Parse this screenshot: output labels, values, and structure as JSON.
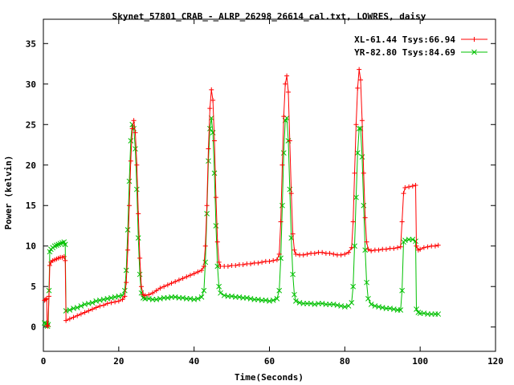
{
  "chart_data": {
    "type": "line",
    "title": "Skynet_57801_CRAB_-_ALRP_26298_26614_cal.txt, LOWRES, daisy",
    "xlabel": "Time(Seconds)",
    "ylabel": "Power (kelvin)",
    "xlim": [
      0,
      120
    ],
    "ylim": [
      -3,
      38
    ],
    "xticks": [
      0,
      20,
      40,
      60,
      80,
      100,
      120
    ],
    "yticks": [
      0,
      5,
      10,
      15,
      20,
      25,
      30,
      35
    ],
    "xtick_labels": [
      "0",
      "20",
      "40",
      "60",
      "80",
      "100",
      "120"
    ],
    "ytick_labels": [
      "0",
      "5",
      "10",
      "15",
      "20",
      "25",
      "30",
      "35"
    ],
    "grid": false,
    "legend_position": "top-right",
    "series": [
      {
        "name": "XL-61.44 Tsys:66.94",
        "color": "#ff0000",
        "marker": "plus",
        "points": [
          [
            0.3,
            3.3
          ],
          [
            0.6,
            3.4
          ],
          [
            0.9,
            3.5
          ],
          [
            1.0,
            0.2
          ],
          [
            1.2,
            0.1
          ],
          [
            1.5,
            3.8
          ],
          [
            1.7,
            7.6
          ],
          [
            2.0,
            8.0
          ],
          [
            2.5,
            8.2
          ],
          [
            3.0,
            8.3
          ],
          [
            3.5,
            8.4
          ],
          [
            4.0,
            8.5
          ],
          [
            4.5,
            8.6
          ],
          [
            5.0,
            8.6
          ],
          [
            5.5,
            8.7
          ],
          [
            5.8,
            8.2
          ],
          [
            6.0,
            0.8
          ],
          [
            7,
            1.0
          ],
          [
            8,
            1.2
          ],
          [
            9,
            1.4
          ],
          [
            10,
            1.6
          ],
          [
            11,
            1.8
          ],
          [
            12,
            2.0
          ],
          [
            13,
            2.2
          ],
          [
            14,
            2.4
          ],
          [
            15,
            2.6
          ],
          [
            16,
            2.7
          ],
          [
            17,
            2.9
          ],
          [
            18,
            3.0
          ],
          [
            19,
            3.1
          ],
          [
            20,
            3.2
          ],
          [
            21,
            3.4
          ],
          [
            21.6,
            3.8
          ],
          [
            22.0,
            5.5
          ],
          [
            22.4,
            9.5
          ],
          [
            22.8,
            15
          ],
          [
            23.2,
            20.5
          ],
          [
            23.6,
            24.5
          ],
          [
            24.0,
            25.5
          ],
          [
            24.4,
            24.0
          ],
          [
            24.8,
            20.0
          ],
          [
            25.2,
            14.0
          ],
          [
            25.6,
            8.5
          ],
          [
            26.0,
            5.0
          ],
          [
            26.5,
            4.0
          ],
          [
            27,
            3.9
          ],
          [
            28,
            4.0
          ],
          [
            29,
            4.2
          ],
          [
            30,
            4.5
          ],
          [
            31,
            4.8
          ],
          [
            32,
            5.0
          ],
          [
            33,
            5.2
          ],
          [
            34,
            5.4
          ],
          [
            35,
            5.6
          ],
          [
            36,
            5.8
          ],
          [
            37,
            6.0
          ],
          [
            38,
            6.2
          ],
          [
            39,
            6.4
          ],
          [
            40,
            6.6
          ],
          [
            41,
            6.8
          ],
          [
            42,
            7.0
          ],
          [
            42.6,
            7.5
          ],
          [
            43.0,
            10
          ],
          [
            43.4,
            15
          ],
          [
            43.8,
            22
          ],
          [
            44.2,
            27
          ],
          [
            44.6,
            29.3
          ],
          [
            45.0,
            28.0
          ],
          [
            45.4,
            23.0
          ],
          [
            45.8,
            16.0
          ],
          [
            46.2,
            10.5
          ],
          [
            46.6,
            8.0
          ],
          [
            47,
            7.5
          ],
          [
            48,
            7.5
          ],
          [
            49,
            7.5
          ],
          [
            50,
            7.6
          ],
          [
            51,
            7.6
          ],
          [
            52,
            7.7
          ],
          [
            53,
            7.7
          ],
          [
            54,
            7.8
          ],
          [
            55,
            7.8
          ],
          [
            56,
            7.9
          ],
          [
            57,
            7.9
          ],
          [
            58,
            8.0
          ],
          [
            59,
            8.1
          ],
          [
            60,
            8.1
          ],
          [
            61,
            8.2
          ],
          [
            62,
            8.3
          ],
          [
            62.6,
            9.0
          ],
          [
            63.0,
            13
          ],
          [
            63.4,
            20
          ],
          [
            63.8,
            26
          ],
          [
            64.2,
            30.0
          ],
          [
            64.6,
            31.0
          ],
          [
            65.0,
            29.0
          ],
          [
            65.4,
            23.0
          ],
          [
            65.8,
            16.5
          ],
          [
            66.2,
            11.5
          ],
          [
            66.6,
            9.5
          ],
          [
            67,
            9.0
          ],
          [
            68,
            8.9
          ],
          [
            69,
            8.9
          ],
          [
            70,
            9.0
          ],
          [
            71,
            9.1
          ],
          [
            72,
            9.1
          ],
          [
            73,
            9.2
          ],
          [
            74,
            9.2
          ],
          [
            75,
            9.1
          ],
          [
            76,
            9.1
          ],
          [
            77,
            9.0
          ],
          [
            78,
            8.9
          ],
          [
            79,
            8.9
          ],
          [
            80,
            9.0
          ],
          [
            81,
            9.2
          ],
          [
            81.8,
            9.8
          ],
          [
            82.2,
            13
          ],
          [
            82.6,
            19
          ],
          [
            83.0,
            25
          ],
          [
            83.4,
            29.5
          ],
          [
            83.8,
            31.8
          ],
          [
            84.2,
            30.5
          ],
          [
            84.6,
            25.5
          ],
          [
            85.0,
            19.0
          ],
          [
            85.4,
            13.5
          ],
          [
            85.8,
            10.5
          ],
          [
            86.2,
            9.6
          ],
          [
            87,
            9.4
          ],
          [
            88,
            9.5
          ],
          [
            89,
            9.5
          ],
          [
            90,
            9.6
          ],
          [
            91,
            9.6
          ],
          [
            92,
            9.7
          ],
          [
            93,
            9.7
          ],
          [
            94,
            9.8
          ],
          [
            94.8,
            9.9
          ],
          [
            95.2,
            13
          ],
          [
            95.6,
            16.5
          ],
          [
            96,
            17.2
          ],
          [
            97,
            17.3
          ],
          [
            98,
            17.4
          ],
          [
            98.8,
            17.5
          ],
          [
            99.0,
            10.0
          ],
          [
            99.5,
            9.5
          ],
          [
            100,
            9.6
          ],
          [
            101,
            9.8
          ],
          [
            102,
            9.9
          ],
          [
            103,
            10.0
          ],
          [
            104,
            10.0
          ],
          [
            104.8,
            10.1
          ]
        ]
      },
      {
        "name": "YR-82.80 Tsys:84.69",
        "color": "#00c000",
        "marker": "cross",
        "points": [
          [
            0.3,
            0.5
          ],
          [
            0.6,
            0.4
          ],
          [
            0.9,
            0.4
          ],
          [
            1.1,
            0.1
          ],
          [
            1.3,
            0.3
          ],
          [
            1.5,
            4.5
          ],
          [
            1.7,
            9.3
          ],
          [
            2.0,
            9.6
          ],
          [
            2.5,
            9.8
          ],
          [
            3.0,
            10.0
          ],
          [
            3.5,
            10.1
          ],
          [
            4.0,
            10.2
          ],
          [
            4.5,
            10.3
          ],
          [
            5.0,
            10.4
          ],
          [
            5.5,
            10.5
          ],
          [
            5.8,
            10.2
          ],
          [
            6.0,
            2.0
          ],
          [
            7,
            2.1
          ],
          [
            8,
            2.3
          ],
          [
            9,
            2.4
          ],
          [
            10,
            2.6
          ],
          [
            11,
            2.8
          ],
          [
            12,
            2.9
          ],
          [
            13,
            3.0
          ],
          [
            14,
            3.2
          ],
          [
            15,
            3.3
          ],
          [
            16,
            3.4
          ],
          [
            17,
            3.5
          ],
          [
            18,
            3.6
          ],
          [
            19,
            3.7
          ],
          [
            20,
            3.8
          ],
          [
            21,
            3.9
          ],
          [
            21.6,
            4.5
          ],
          [
            22.0,
            7.0
          ],
          [
            22.4,
            12
          ],
          [
            22.8,
            18
          ],
          [
            23.2,
            23
          ],
          [
            23.6,
            25.0
          ],
          [
            24.0,
            24.5
          ],
          [
            24.4,
            22.0
          ],
          [
            24.8,
            17.0
          ],
          [
            25.2,
            11.0
          ],
          [
            25.6,
            6.5
          ],
          [
            26.0,
            4.2
          ],
          [
            26.5,
            3.6
          ],
          [
            27,
            3.5
          ],
          [
            28,
            3.5
          ],
          [
            29,
            3.4
          ],
          [
            30,
            3.4
          ],
          [
            31,
            3.5
          ],
          [
            32,
            3.6
          ],
          [
            33,
            3.6
          ],
          [
            34,
            3.7
          ],
          [
            35,
            3.7
          ],
          [
            36,
            3.6
          ],
          [
            37,
            3.6
          ],
          [
            38,
            3.5
          ],
          [
            39,
            3.5
          ],
          [
            40,
            3.4
          ],
          [
            41,
            3.5
          ],
          [
            42,
            3.7
          ],
          [
            42.6,
            4.5
          ],
          [
            43.0,
            8
          ],
          [
            43.4,
            14
          ],
          [
            43.8,
            20.5
          ],
          [
            44.2,
            24.5
          ],
          [
            44.6,
            25.8
          ],
          [
            45.0,
            24.0
          ],
          [
            45.4,
            19.0
          ],
          [
            45.8,
            12.5
          ],
          [
            46.2,
            7.5
          ],
          [
            46.6,
            5.0
          ],
          [
            47,
            4.2
          ],
          [
            48,
            3.9
          ],
          [
            49,
            3.8
          ],
          [
            50,
            3.8
          ],
          [
            51,
            3.7
          ],
          [
            52,
            3.7
          ],
          [
            53,
            3.6
          ],
          [
            54,
            3.6
          ],
          [
            55,
            3.5
          ],
          [
            56,
            3.4
          ],
          [
            57,
            3.4
          ],
          [
            58,
            3.3
          ],
          [
            59,
            3.3
          ],
          [
            60,
            3.2
          ],
          [
            61,
            3.3
          ],
          [
            62,
            3.5
          ],
          [
            62.6,
            4.5
          ],
          [
            63.0,
            8.5
          ],
          [
            63.4,
            15
          ],
          [
            63.8,
            21.5
          ],
          [
            64.2,
            25.5
          ],
          [
            64.6,
            25.8
          ],
          [
            65.0,
            23.0
          ],
          [
            65.4,
            17.0
          ],
          [
            65.8,
            11.0
          ],
          [
            66.2,
            6.5
          ],
          [
            66.6,
            4.0
          ],
          [
            67,
            3.2
          ],
          [
            68,
            3.0
          ],
          [
            69,
            2.9
          ],
          [
            70,
            2.9
          ],
          [
            71,
            2.9
          ],
          [
            72,
            2.8
          ],
          [
            73,
            2.9
          ],
          [
            74,
            2.9
          ],
          [
            75,
            2.8
          ],
          [
            76,
            2.8
          ],
          [
            77,
            2.8
          ],
          [
            78,
            2.7
          ],
          [
            79,
            2.6
          ],
          [
            80,
            2.5
          ],
          [
            81,
            2.6
          ],
          [
            81.8,
            3.0
          ],
          [
            82.2,
            5.0
          ],
          [
            82.6,
            10
          ],
          [
            83.0,
            16
          ],
          [
            83.4,
            21.5
          ],
          [
            83.8,
            24.5
          ],
          [
            84.2,
            24.5
          ],
          [
            84.6,
            21.0
          ],
          [
            85.0,
            15.0
          ],
          [
            85.4,
            9.5
          ],
          [
            85.8,
            5.5
          ],
          [
            86.2,
            3.5
          ],
          [
            87,
            2.8
          ],
          [
            88,
            2.6
          ],
          [
            89,
            2.5
          ],
          [
            90,
            2.4
          ],
          [
            91,
            2.3
          ],
          [
            92,
            2.3
          ],
          [
            93,
            2.2
          ],
          [
            94,
            2.1
          ],
          [
            94.8,
            2.1
          ],
          [
            95.2,
            4.5
          ],
          [
            95.6,
            10.5
          ],
          [
            96,
            10.7
          ],
          [
            97,
            10.8
          ],
          [
            98,
            10.8
          ],
          [
            98.8,
            10.6
          ],
          [
            99.0,
            2.2
          ],
          [
            99.5,
            1.8
          ],
          [
            100,
            1.7
          ],
          [
            101,
            1.7
          ],
          [
            102,
            1.6
          ],
          [
            103,
            1.6
          ],
          [
            104,
            1.6
          ],
          [
            104.8,
            1.6
          ]
        ]
      }
    ]
  }
}
